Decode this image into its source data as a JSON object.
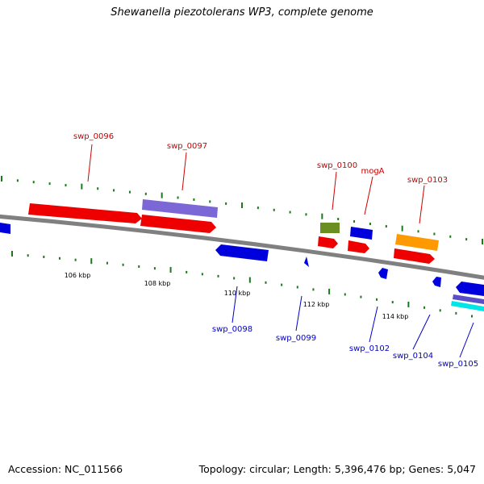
{
  "title": "Shewanella piezotolerans WP3, complete genome",
  "footer": {
    "accession": "Accession: NC_011566",
    "summary": "Topology: circular; Length: 5,396,476 bp; Genes: 5,047"
  },
  "colors": {
    "forward_label": "#cc0000",
    "reverse_label": "#0000cc",
    "backbone": "#808080",
    "tick": "#1a7a1a"
  },
  "ticks": [
    "106 kbp",
    "108 kbp",
    "110 kbp",
    "112 kbp",
    "114 kbp"
  ],
  "forward_labels": [
    "swp_0096",
    "swp_0097",
    "swp_0100",
    "mogA",
    "swp_0103"
  ],
  "reverse_labels": [
    "swp_0098",
    "swp_0099",
    "swp_0102",
    "swp_0104",
    "swp_0105"
  ]
}
